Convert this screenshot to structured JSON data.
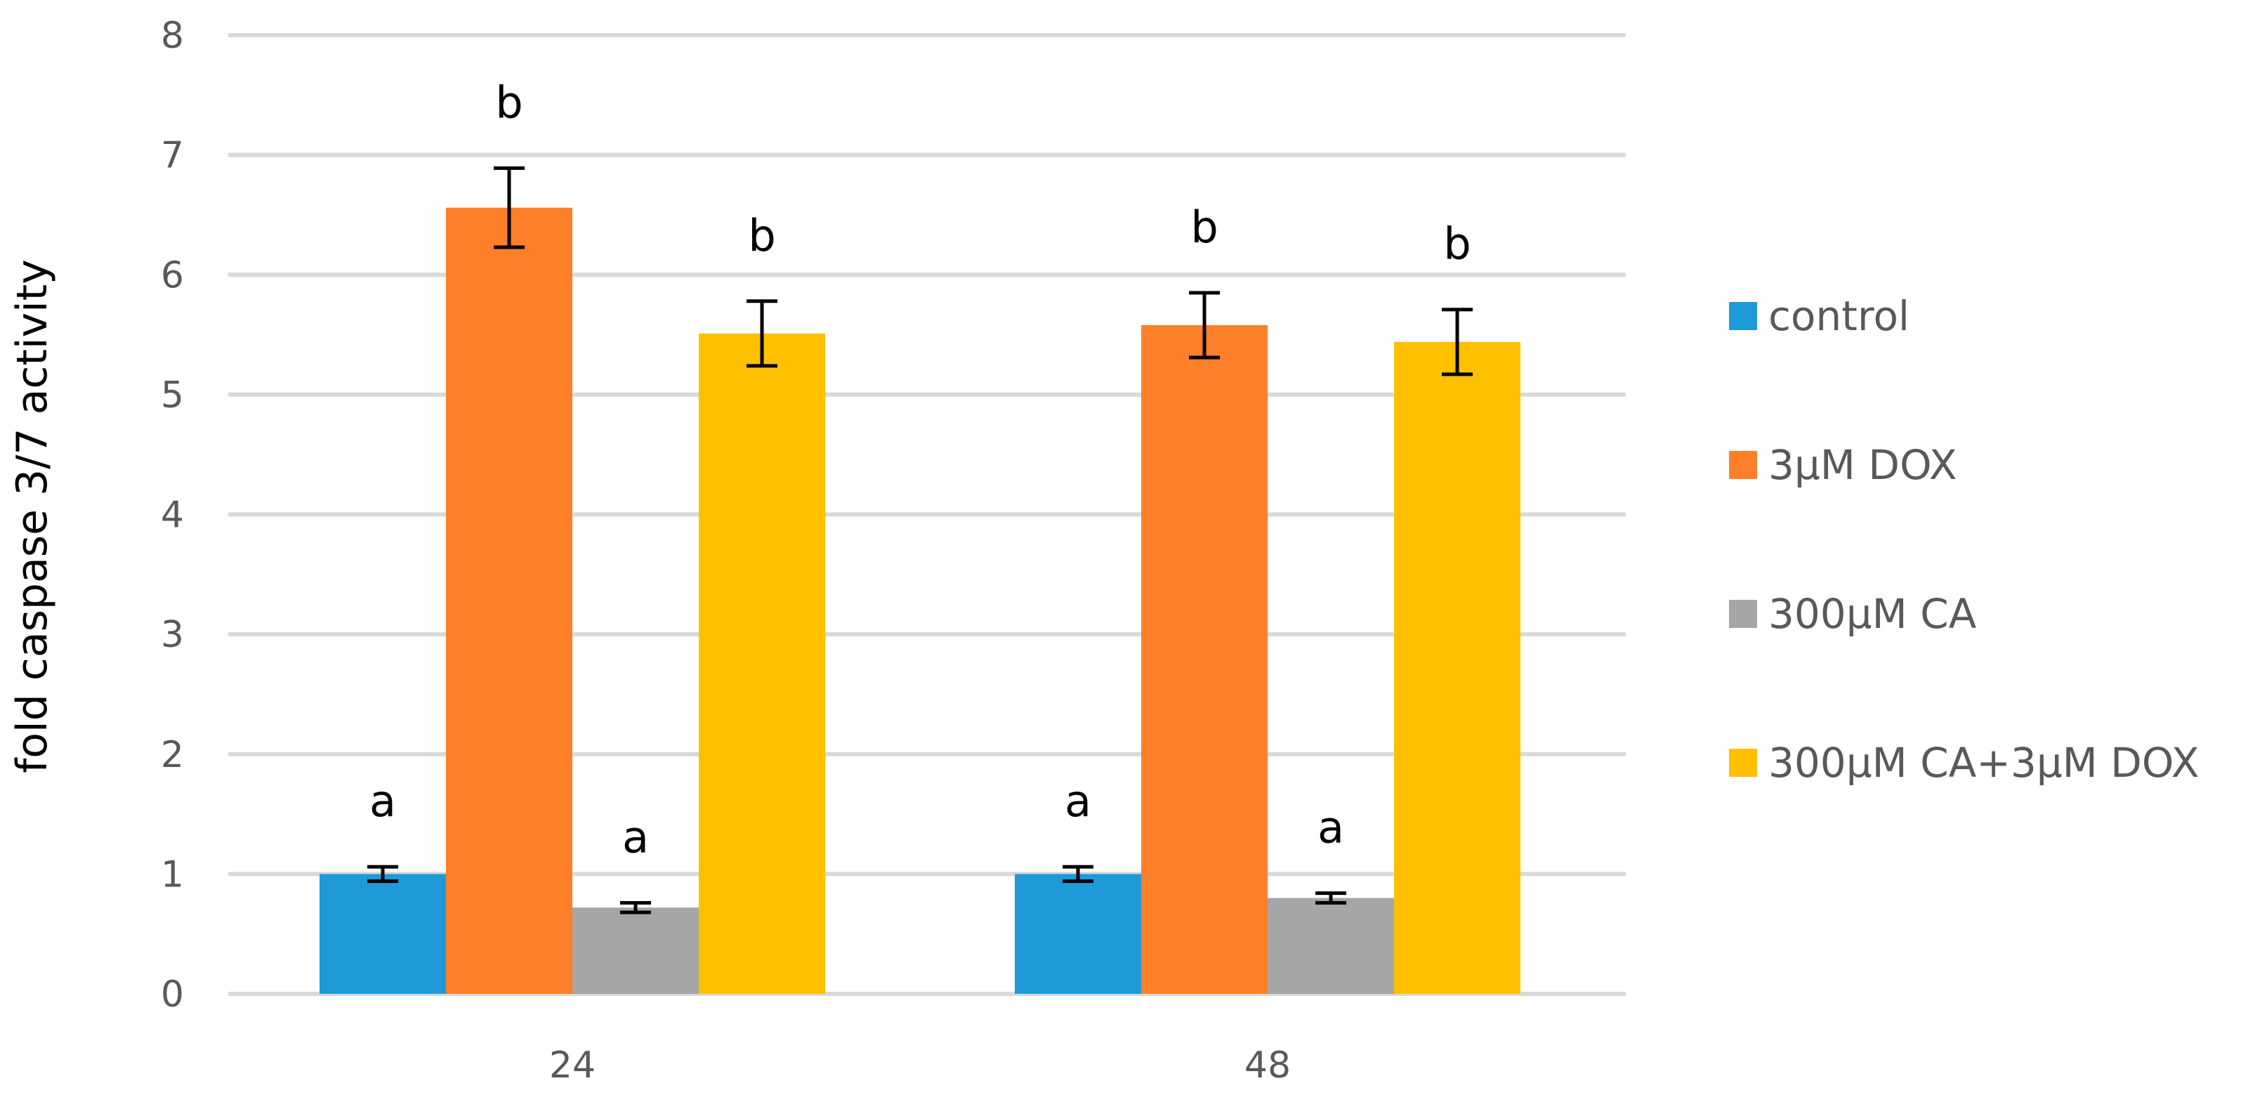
{
  "chart_data": {
    "type": "bar",
    "title": "",
    "xlabel": "",
    "ylabel": "fold caspase 3/7 activity",
    "ylim": [
      0,
      8
    ],
    "yticks": [
      0,
      1,
      2,
      3,
      4,
      5,
      6,
      7,
      8
    ],
    "grid": true,
    "legend_position": "right",
    "categories": [
      "24",
      "48"
    ],
    "series": [
      {
        "name": "control",
        "color": "#1f9ad9",
        "values": [
          1.0,
          1.0
        ],
        "errors": [
          0.06,
          0.06
        ],
        "labels": [
          "a",
          "a"
        ]
      },
      {
        "name": "3μM DOX",
        "color": "#fe7f29",
        "values": [
          6.56,
          5.58
        ],
        "errors": [
          0.33,
          0.27
        ],
        "labels": [
          "b",
          "b"
        ]
      },
      {
        "name": "300μM CA",
        "color": "#a6a6a6",
        "values": [
          0.72,
          0.8
        ],
        "errors": [
          0.04,
          0.04
        ],
        "labels": [
          "a",
          "a"
        ]
      },
      {
        "name": "300μM CA+3μM DOX",
        "color": "#ffc000",
        "values": [
          5.51,
          5.44
        ],
        "errors": [
          0.27,
          0.27
        ],
        "labels": [
          "b",
          "b"
        ]
      }
    ]
  }
}
